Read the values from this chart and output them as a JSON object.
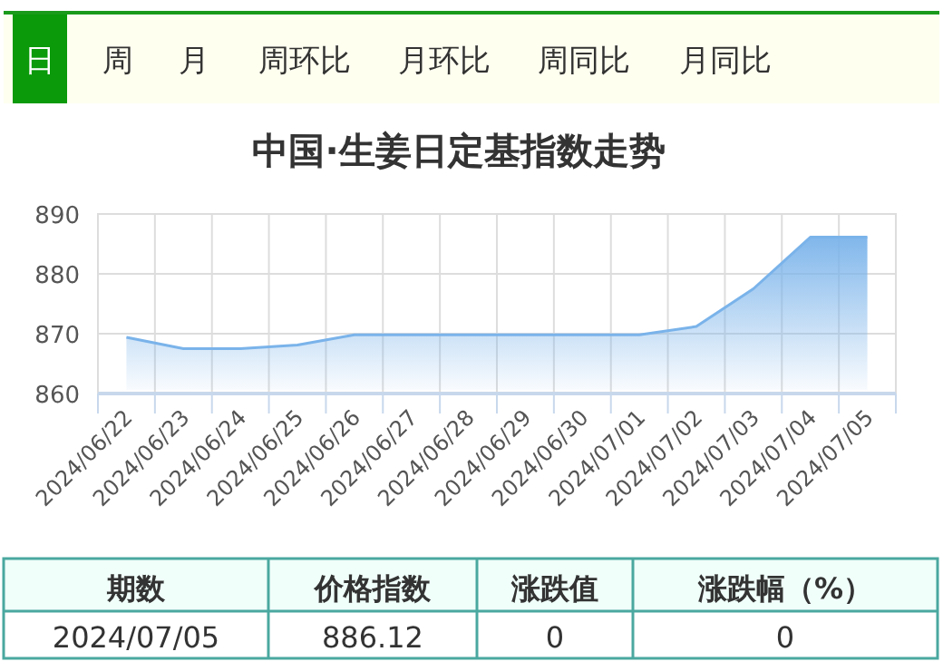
{
  "chart_data": {
    "type": "area",
    "title": "中国·生姜日定基指数走势",
    "categories": [
      "2024/06/22",
      "2024/06/23",
      "2024/06/24",
      "2024/06/25",
      "2024/06/26",
      "2024/06/27",
      "2024/06/28",
      "2024/06/29",
      "2024/06/30",
      "2024/07/01",
      "2024/07/02",
      "2024/07/03",
      "2024/07/04",
      "2024/07/05"
    ],
    "series": [
      {
        "color": "#7ab3ea",
        "values": [
          869.4,
          867.5,
          867.5,
          868.1,
          869.8,
          869.8,
          869.8,
          869.8,
          869.8,
          869.8,
          871.2,
          877.5,
          886.12,
          886.12
        ]
      }
    ],
    "ylim": [
      860,
      890
    ],
    "yticks": [
      860,
      870,
      880,
      890
    ],
    "grid": true,
    "annotations": [
      "日",
      "周",
      "月",
      "周环比",
      "月环比",
      "周同比",
      "月同比",
      "期数",
      "价格指数",
      "涨跌值",
      "涨跌幅（%）",
      "2024/07/05",
      "886.12",
      "0",
      "0"
    ]
  }
}
